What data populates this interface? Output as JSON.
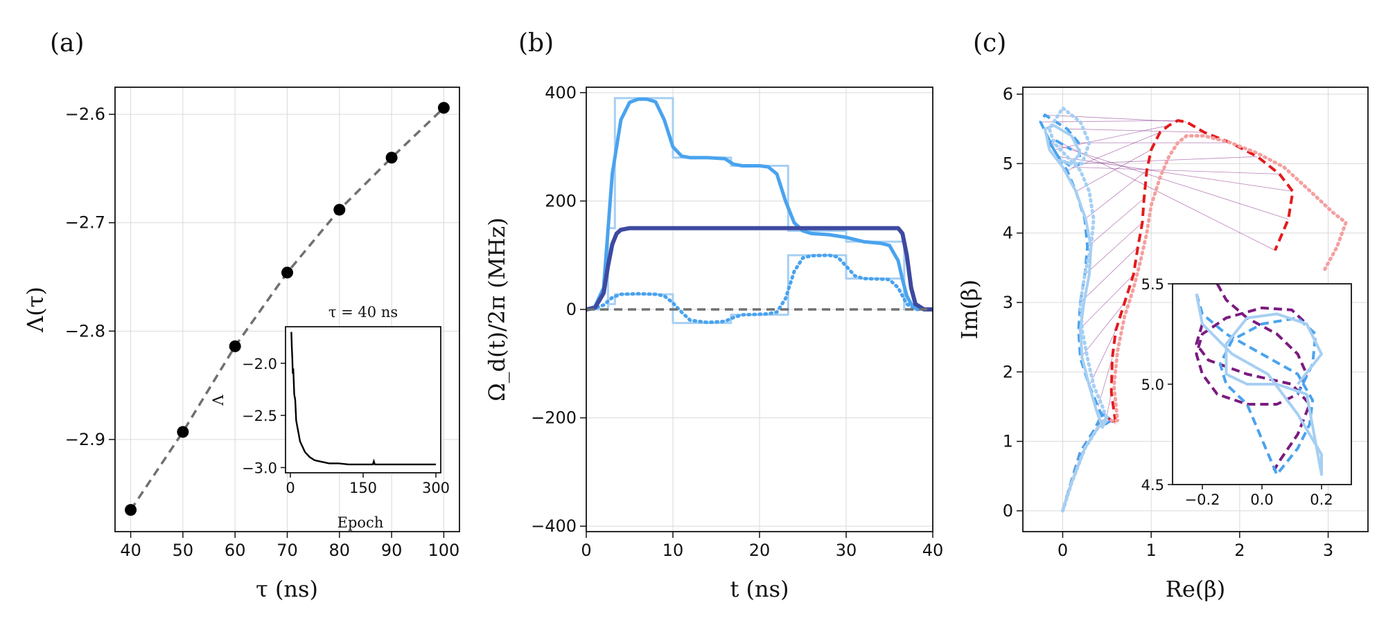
{
  "colors": {
    "black": "#000000",
    "gray": "#707070",
    "blue": "#4aa3ee",
    "lightblue": "#a6cff3",
    "darkblue": "#3d4aa0",
    "red": "#e41a1c",
    "lightred": "#f4a0a0",
    "purple": "#7b1a80"
  },
  "chart_data": [
    {
      "type": "scatter",
      "panel_label": "(a)",
      "xlabel": "τ (ns)",
      "ylabel": "Λ(τ)",
      "xlim": [
        37,
        103
      ],
      "ylim": [
        -2.985,
        -2.575
      ],
      "xticks": [
        40,
        50,
        60,
        70,
        80,
        90,
        100
      ],
      "yticks": [
        -2.9,
        -2.8,
        -2.7,
        -2.6
      ],
      "ytick_labels": [
        "−2.9",
        "−2.8",
        "−2.7",
        "−2.6"
      ],
      "series": [
        {
          "name": "Λ(τ)",
          "marker": "circle",
          "line": "dashed",
          "x": [
            40,
            50,
            60,
            70,
            80,
            90,
            100
          ],
          "y": [
            -2.965,
            -2.893,
            -2.814,
            -2.746,
            -2.688,
            -2.64,
            -2.594
          ]
        }
      ],
      "inset": {
        "type": "line",
        "title": "τ = 40 ns",
        "xlabel": "Epoch",
        "ylabel": "Λ",
        "xlim": [
          -10,
          310
        ],
        "ylim": [
          -3.05,
          -1.65
        ],
        "xticks": [
          0,
          150,
          300
        ],
        "yticks": [
          -3.0,
          -2.5,
          -2.0
        ],
        "ytick_labels": [
          "−3.0",
          "−2.5",
          "−2.0"
        ],
        "x": [
          2,
          3,
          4,
          5,
          6,
          8,
          10,
          12,
          14,
          16,
          18,
          20,
          25,
          30,
          40,
          50,
          60,
          70,
          80,
          100,
          120,
          150,
          170,
          172,
          174,
          200,
          230,
          260,
          290,
          300
        ],
        "y": [
          -1.7,
          -1.85,
          -1.95,
          -2.1,
          -2.05,
          -2.3,
          -2.35,
          -2.55,
          -2.6,
          -2.65,
          -2.7,
          -2.75,
          -2.8,
          -2.85,
          -2.9,
          -2.93,
          -2.94,
          -2.95,
          -2.96,
          -2.96,
          -2.97,
          -2.97,
          -2.97,
          -2.94,
          -2.97,
          -2.97,
          -2.97,
          -2.97,
          -2.97,
          -2.97
        ]
      }
    },
    {
      "type": "line",
      "panel_label": "(b)",
      "xlabel": "t (ns)",
      "ylabel": "Ω_d(t)/2π (MHz)",
      "xlim": [
        0,
        40
      ],
      "ylim": [
        -410,
        410
      ],
      "xticks": [
        0,
        10,
        20,
        30,
        40
      ],
      "yticks": [
        -400,
        -200,
        0,
        200,
        400
      ],
      "ytick_labels": [
        "−400",
        "−200",
        "0",
        "200",
        "400"
      ],
      "series": [
        {
          "name": "piecewise real",
          "style": "step",
          "color": "lightblue",
          "x": [
            0,
            2.5,
            2.5,
            3.3,
            3.3,
            10,
            10,
            16.7,
            16.7,
            23.3,
            23.3,
            30,
            30,
            36.7,
            36.7,
            40
          ],
          "y": [
            0,
            0,
            150,
            150,
            390,
            390,
            280,
            280,
            265,
            265,
            145,
            145,
            125,
            125,
            0,
            0
          ]
        },
        {
          "name": "piecewise imag",
          "style": "step",
          "color": "lightblue",
          "x": [
            0,
            2.5,
            2.5,
            3.3,
            3.3,
            10,
            10,
            16.7,
            16.7,
            23.3,
            23.3,
            30,
            30,
            36.7,
            36.7,
            40
          ],
          "y": [
            0,
            0,
            10,
            10,
            28,
            28,
            -25,
            -25,
            -10,
            -10,
            100,
            100,
            57,
            57,
            0,
            0
          ]
        },
        {
          "name": "smooth real",
          "style": "solid",
          "color": "blue",
          "x": [
            0,
            1,
            2,
            3,
            4,
            5,
            6,
            7,
            8,
            9,
            10,
            11,
            12,
            14,
            16,
            17,
            18,
            20,
            21,
            22,
            23,
            24,
            25,
            26,
            28,
            30,
            32,
            34,
            35,
            36,
            36.5,
            37,
            37.5,
            38,
            39,
            40
          ],
          "y": [
            0,
            5,
            40,
            250,
            350,
            382,
            388,
            388,
            383,
            350,
            300,
            283,
            280,
            280,
            278,
            268,
            265,
            265,
            263,
            250,
            200,
            160,
            145,
            140,
            138,
            133,
            125,
            122,
            118,
            90,
            55,
            25,
            10,
            3,
            0,
            0
          ]
        },
        {
          "name": "smooth imag",
          "style": "dotted",
          "color": "blue",
          "x": [
            0,
            1,
            2,
            3,
            4,
            6,
            8,
            9,
            10,
            11,
            12,
            14,
            16,
            17,
            18,
            20,
            21,
            22,
            23,
            24,
            25,
            26,
            28,
            29,
            30,
            31,
            32,
            34,
            35,
            36,
            37,
            38,
            40
          ],
          "y": [
            0,
            2,
            8,
            22,
            28,
            29,
            28,
            25,
            12,
            -5,
            -20,
            -24,
            -22,
            -15,
            -10,
            -9,
            -8,
            -5,
            20,
            70,
            95,
            99,
            100,
            97,
            80,
            62,
            57,
            56,
            55,
            40,
            10,
            0,
            0
          ]
        },
        {
          "name": "reference",
          "style": "solid",
          "color": "darkblue",
          "x": [
            0,
            1,
            2,
            2.5,
            3,
            3.5,
            4,
            5,
            36,
            36.5,
            37,
            37.5,
            38,
            39,
            40
          ],
          "y": [
            0,
            3,
            30,
            80,
            120,
            140,
            147,
            150,
            150,
            140,
            100,
            40,
            10,
            0,
            0
          ]
        },
        {
          "name": "zero",
          "style": "dashed",
          "color": "gray",
          "x": [
            0,
            40
          ],
          "y": [
            0,
            0
          ]
        }
      ]
    },
    {
      "type": "line",
      "panel_label": "(c)",
      "xlabel": "Re(β)",
      "ylabel": "Im(β)",
      "xlim": [
        -0.45,
        3.45
      ],
      "ylim": [
        -0.3,
        6.1
      ],
      "xticks": [
        0,
        1,
        2,
        3
      ],
      "yticks": [
        0,
        1,
        2,
        3,
        4,
        5,
        6
      ],
      "series": [
        {
          "name": "red dashed",
          "style": "dashed",
          "color": "red",
          "x": [
            0,
            0.08,
            0.2,
            0.35,
            0.5,
            0.6,
            0.55,
            0.56,
            0.6,
            0.7,
            0.8,
            0.85,
            0.9,
            0.92,
            0.95,
            1.0,
            1.1,
            1.2,
            1.3,
            1.4,
            1.6,
            1.9,
            2.2,
            2.45,
            2.6,
            2.55,
            2.4
          ],
          "y": [
            0,
            0.35,
            0.85,
            1.15,
            1.35,
            1.25,
            1.7,
            2.2,
            2.6,
            3.0,
            3.4,
            3.8,
            4.15,
            4.5,
            4.9,
            5.2,
            5.45,
            5.55,
            5.62,
            5.6,
            5.45,
            5.3,
            5.1,
            4.85,
            4.6,
            4.2,
            3.75
          ]
        },
        {
          "name": "red dotted",
          "style": "dotted",
          "color": "lightred",
          "x": [
            0,
            0.1,
            0.25,
            0.4,
            0.55,
            0.62,
            0.58,
            0.62,
            0.7,
            0.8,
            0.88,
            0.95,
            1.0,
            1.1,
            1.2,
            1.3,
            1.4,
            1.6,
            1.9,
            2.2,
            2.5,
            2.8,
            3.05,
            3.2,
            3.1,
            2.95
          ],
          "y": [
            0,
            0.4,
            0.9,
            1.2,
            1.3,
            1.3,
            1.8,
            2.3,
            2.8,
            3.2,
            3.6,
            4.0,
            4.4,
            4.8,
            5.1,
            5.3,
            5.4,
            5.4,
            5.3,
            5.15,
            4.95,
            4.6,
            4.3,
            4.15,
            3.8,
            3.45
          ]
        },
        {
          "name": "blue dashed",
          "style": "dashed",
          "color": "blue",
          "x": [
            0,
            0.08,
            0.2,
            0.35,
            0.45,
            0.55,
            0.48,
            0.4,
            0.3,
            0.2,
            0.18,
            0.2,
            0.25,
            0.28,
            0.25,
            0.15,
            0.05,
            -0.1,
            -0.25,
            -0.2,
            0.05,
            0.18,
            0.2,
            0.1,
            -0.05,
            -0.15,
            -0.1,
            0.1
          ],
          "y": [
            0,
            0.35,
            0.85,
            1.15,
            1.4,
            1.3,
            1.25,
            1.5,
            1.8,
            2.2,
            2.6,
            3.0,
            3.4,
            3.8,
            4.2,
            4.6,
            4.9,
            5.2,
            5.6,
            5.7,
            5.5,
            5.3,
            5.0,
            4.95,
            5.1,
            5.3,
            5.35,
            5.2
          ]
        },
        {
          "name": "blue dotted",
          "style": "dotted",
          "color": "lightblue",
          "x": [
            0,
            0.1,
            0.25,
            0.4,
            0.5,
            0.45,
            0.35,
            0.28,
            0.22,
            0.2,
            0.25,
            0.32,
            0.35,
            0.3,
            0.2,
            0.05,
            -0.1,
            -0.15,
            0.0,
            0.2,
            0.3,
            0.22,
            0.05
          ],
          "y": [
            0,
            0.4,
            0.9,
            1.2,
            1.3,
            1.5,
            1.8,
            2.2,
            2.6,
            3.0,
            3.4,
            3.8,
            4.2,
            4.6,
            4.9,
            5.1,
            5.3,
            5.5,
            5.8,
            5.6,
            5.3,
            5.0,
            5.0
          ]
        },
        {
          "name": "blue solid",
          "style": "solid",
          "color": "lightblue",
          "x": [
            0,
            0.1,
            0.25,
            0.4,
            0.5,
            0.45,
            0.38,
            0.3,
            0.22,
            0.2,
            0.24,
            0.3,
            0.32,
            0.26,
            0.15,
            0.0,
            -0.15,
            -0.2,
            -0.1,
            0.1,
            0.2,
            0.1,
            -0.05
          ],
          "y": [
            0,
            0.4,
            0.9,
            1.2,
            1.35,
            1.2,
            1.45,
            1.8,
            2.2,
            2.6,
            3.0,
            3.4,
            3.8,
            4.2,
            4.6,
            4.95,
            5.2,
            5.5,
            5.55,
            5.4,
            5.15,
            5.0,
            5.05
          ]
        }
      ],
      "inset": {
        "type": "line",
        "xlim": [
          -0.3,
          0.3
        ],
        "ylim": [
          4.5,
          5.5
        ],
        "xticks": [
          -0.2,
          0.0,
          0.2
        ],
        "xtick_labels": [
          "−0.2",
          "0.0",
          "0.2"
        ],
        "yticks": [
          4.5,
          5.0,
          5.5
        ],
        "ytick_labels": [
          "4.5",
          "5.0",
          "5.5"
        ],
        "series": [
          {
            "name": "purple dashed A",
            "style": "dashed",
            "color": "purple",
            "x": [
              -0.15,
              -0.12,
              -0.05,
              0.05,
              0.12,
              0.15,
              0.12,
              0.05,
              -0.05,
              -0.15,
              -0.2,
              -0.22,
              -0.2,
              -0.12,
              0.0,
              0.1,
              0.15
            ],
            "y": [
              5.5,
              5.42,
              5.33,
              5.25,
              5.15,
              5.05,
              4.95,
              4.9,
              4.9,
              4.95,
              5.05,
              5.15,
              5.25,
              5.33,
              5.38,
              5.37,
              5.3
            ]
          },
          {
            "name": "purple dashed B",
            "style": "dashed",
            "color": "purple",
            "x": [
              -0.2,
              -0.22,
              -0.18,
              -0.05,
              0.1,
              0.16,
              0.12,
              0.06,
              0.04
            ],
            "y": [
              5.3,
              5.2,
              5.12,
              5.05,
              5.0,
              4.9,
              4.75,
              4.62,
              4.57
            ]
          },
          {
            "name": "blue dashed",
            "style": "dashed",
            "color": "blue",
            "x": [
              -0.22,
              -0.2,
              -0.12,
              0.0,
              0.12,
              0.17,
              0.16,
              0.12,
              0.05,
              -0.05,
              -0.12,
              -0.14,
              -0.1,
              0.0,
              0.12,
              0.18,
              0.17,
              0.12
            ],
            "y": [
              5.45,
              5.35,
              5.25,
              5.15,
              5.05,
              4.92,
              4.8,
              4.68,
              4.55,
              4.9,
              5.0,
              5.1,
              5.22,
              5.3,
              5.33,
              5.25,
              5.1,
              4.95
            ]
          },
          {
            "name": "blue solid",
            "style": "solid",
            "color": "lightblue",
            "x": [
              -0.22,
              -0.2,
              -0.1,
              0.02,
              0.12,
              0.2,
              0.2,
              0.15,
              0.05,
              -0.05,
              -0.12,
              -0.12,
              -0.05,
              0.05,
              0.15,
              0.2,
              0.12
            ],
            "y": [
              5.45,
              5.3,
              5.15,
              5.05,
              4.85,
              4.65,
              4.55,
              4.95,
              5.0,
              5.0,
              5.05,
              5.2,
              5.33,
              5.35,
              5.3,
              5.15,
              5.0
            ]
          }
        ]
      }
    }
  ]
}
